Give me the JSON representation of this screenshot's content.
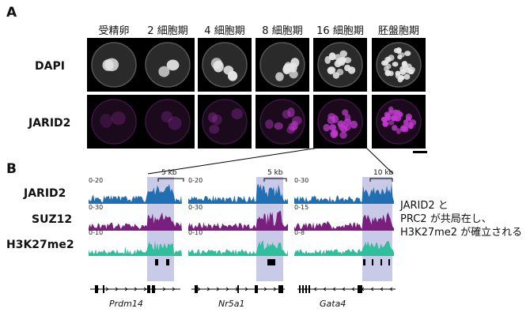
{
  "panels": {
    "a": "A",
    "b": "B"
  },
  "panel_a": {
    "stages": [
      "受精卵",
      "2 細胞期",
      "4 細胞期",
      "8 細胞期",
      "16 細胞期",
      "胚盤胞期"
    ],
    "rows": [
      {
        "label": "DAPI",
        "color": "#e6e6e6"
      },
      {
        "label": "JARID2",
        "color": "#c23ad0"
      }
    ]
  },
  "panel_b": {
    "tracks": [
      {
        "label": "JARID2",
        "color": "#1f6fb2",
        "ranges": [
          "0-20",
          "0-20",
          "0-30"
        ]
      },
      {
        "label": "SUZ12",
        "color": "#7a1f7d",
        "ranges": [
          "0-30",
          "0-30",
          "0-15"
        ]
      },
      {
        "label": "H3K27me2",
        "color": "#2fbf9d",
        "ranges": [
          "0-10",
          "0-10",
          "0-8"
        ]
      }
    ],
    "loci": [
      {
        "gene": "Prdm14",
        "scalebar": "5 kb"
      },
      {
        "gene": "Nr5a1",
        "scalebar": "5 kb"
      },
      {
        "gene": "Gata4",
        "scalebar": "10 kb"
      }
    ],
    "note_lines": [
      "JARID2 と",
      "PRC2 が共局在し、",
      "H3K27me2 が確立される"
    ],
    "highlight_color": "#c9c9e8"
  }
}
